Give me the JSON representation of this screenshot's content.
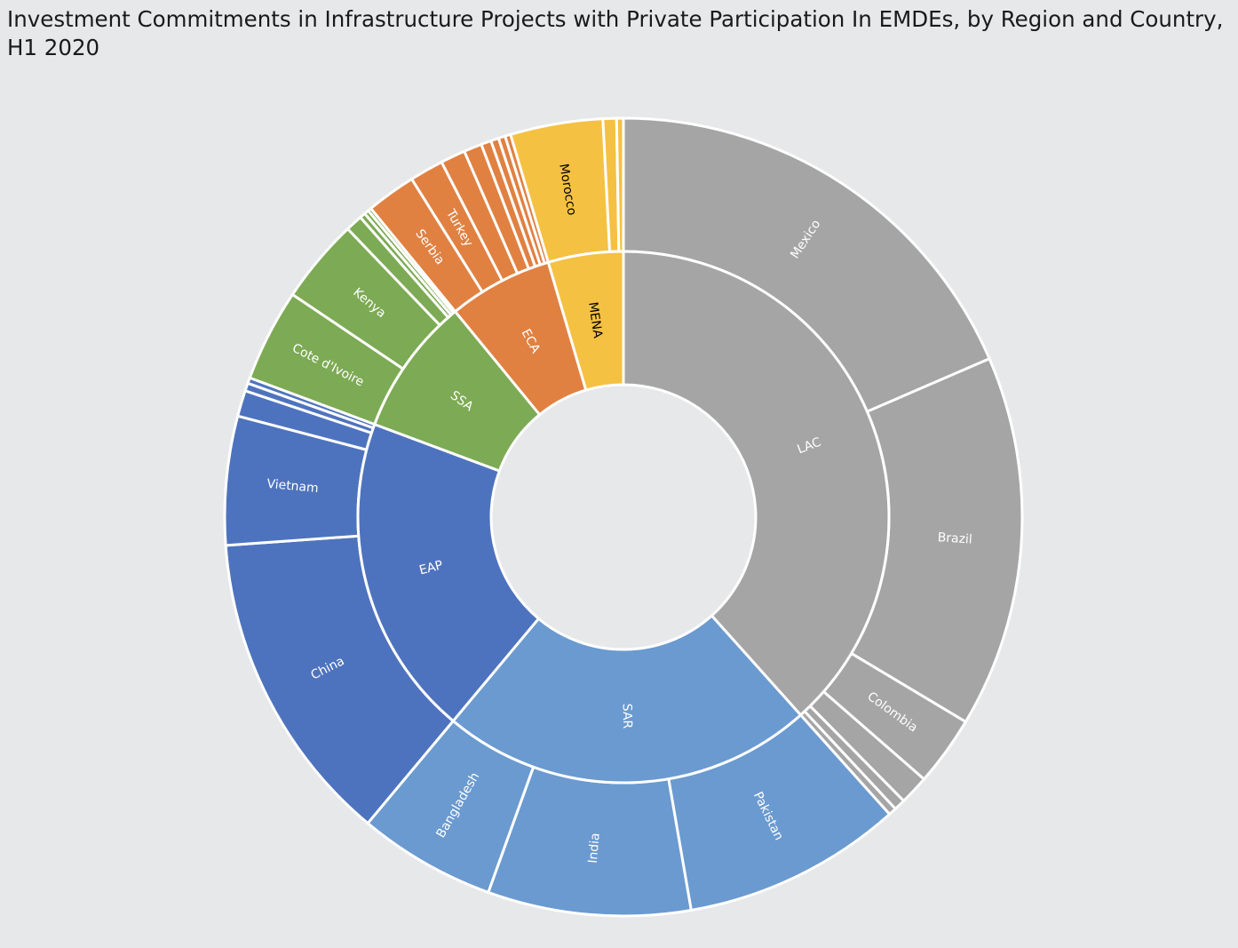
{
  "chart_data": {
    "type": "sunburst",
    "title": "Investment Commitments in Infrastructure Projects with Private Participation In EMDEs, by Region and Country, H1 2020",
    "regions": [
      {
        "name": "LAC",
        "label": "LAC",
        "color": "#a5a5a5",
        "children": [
          {
            "name": "Mexico",
            "label": "Mexico",
            "value": 20.25
          },
          {
            "name": "Brazil",
            "label": "Brazil",
            "value": 16.5
          },
          {
            "name": "Colombia",
            "label": "Colombia",
            "value": 3.1
          },
          {
            "name": "lac-small-1",
            "label": "",
            "value": 1.3
          },
          {
            "name": "lac-small-2",
            "label": "",
            "value": 0.5
          },
          {
            "name": "lac-small-3",
            "label": "",
            "value": 0.35
          }
        ]
      },
      {
        "name": "SAR",
        "label": "SAR",
        "color": "#6a9ad0",
        "children": [
          {
            "name": "Pakistan",
            "label": "Pakistan",
            "value": 9.75
          },
          {
            "name": "India",
            "label": "India",
            "value": 9.0
          },
          {
            "name": "Bangladesh",
            "label": "Bangladesh",
            "value": 6.1
          }
        ]
      },
      {
        "name": "EAP",
        "label": "EAP",
        "color": "#4e73be",
        "children": [
          {
            "name": "China",
            "label": "China",
            "value": 14.0
          },
          {
            "name": "Vietnam",
            "label": "Vietnam",
            "value": 5.7
          },
          {
            "name": "eap-small-1",
            "label": "",
            "value": 1.15
          },
          {
            "name": "eap-small-2",
            "label": "",
            "value": 0.35
          },
          {
            "name": "eap-small-3",
            "label": "",
            "value": 0.25
          }
        ]
      },
      {
        "name": "SSA",
        "label": "SSA",
        "color": "#7daa54",
        "children": [
          {
            "name": "Cote d'Ivoire",
            "label": "Cote d'Ivoire",
            "value": 4.1
          },
          {
            "name": "Kenya",
            "label": "Kenya",
            "value": 3.75
          },
          {
            "name": "ssa-small-1",
            "label": "",
            "value": 0.75
          },
          {
            "name": "ssa-small-2",
            "label": "",
            "value": 0.25
          },
          {
            "name": "ssa-small-3",
            "label": "",
            "value": 0.2
          },
          {
            "name": "ssa-small-4",
            "label": "",
            "value": 0.15
          }
        ]
      },
      {
        "name": "ECA",
        "label": "ECA",
        "color": "#e08142",
        "children": [
          {
            "name": "Serbia",
            "label": "Serbia",
            "value": 2.2
          },
          {
            "name": "Turkey",
            "label": "Turkey",
            "value": 1.5
          },
          {
            "name": "eca-small-1",
            "label": "",
            "value": 1.1
          },
          {
            "name": "eca-small-2",
            "label": "",
            "value": 0.8
          },
          {
            "name": "eca-small-3",
            "label": "",
            "value": 0.45
          },
          {
            "name": "eca-small-4",
            "label": "",
            "value": 0.35
          },
          {
            "name": "eca-small-5",
            "label": "",
            "value": 0.3
          },
          {
            "name": "eca-small-6",
            "label": "",
            "value": 0.25
          }
        ]
      },
      {
        "name": "MENA",
        "label": "MENA",
        "color": "#f5c142",
        "children": [
          {
            "name": "Morocco",
            "label": "Morocco",
            "value": 4.1
          },
          {
            "name": "mena-small-1",
            "label": "",
            "value": 0.6
          },
          {
            "name": "mena-small-2",
            "label": "",
            "value": 0.3
          }
        ]
      }
    ]
  }
}
